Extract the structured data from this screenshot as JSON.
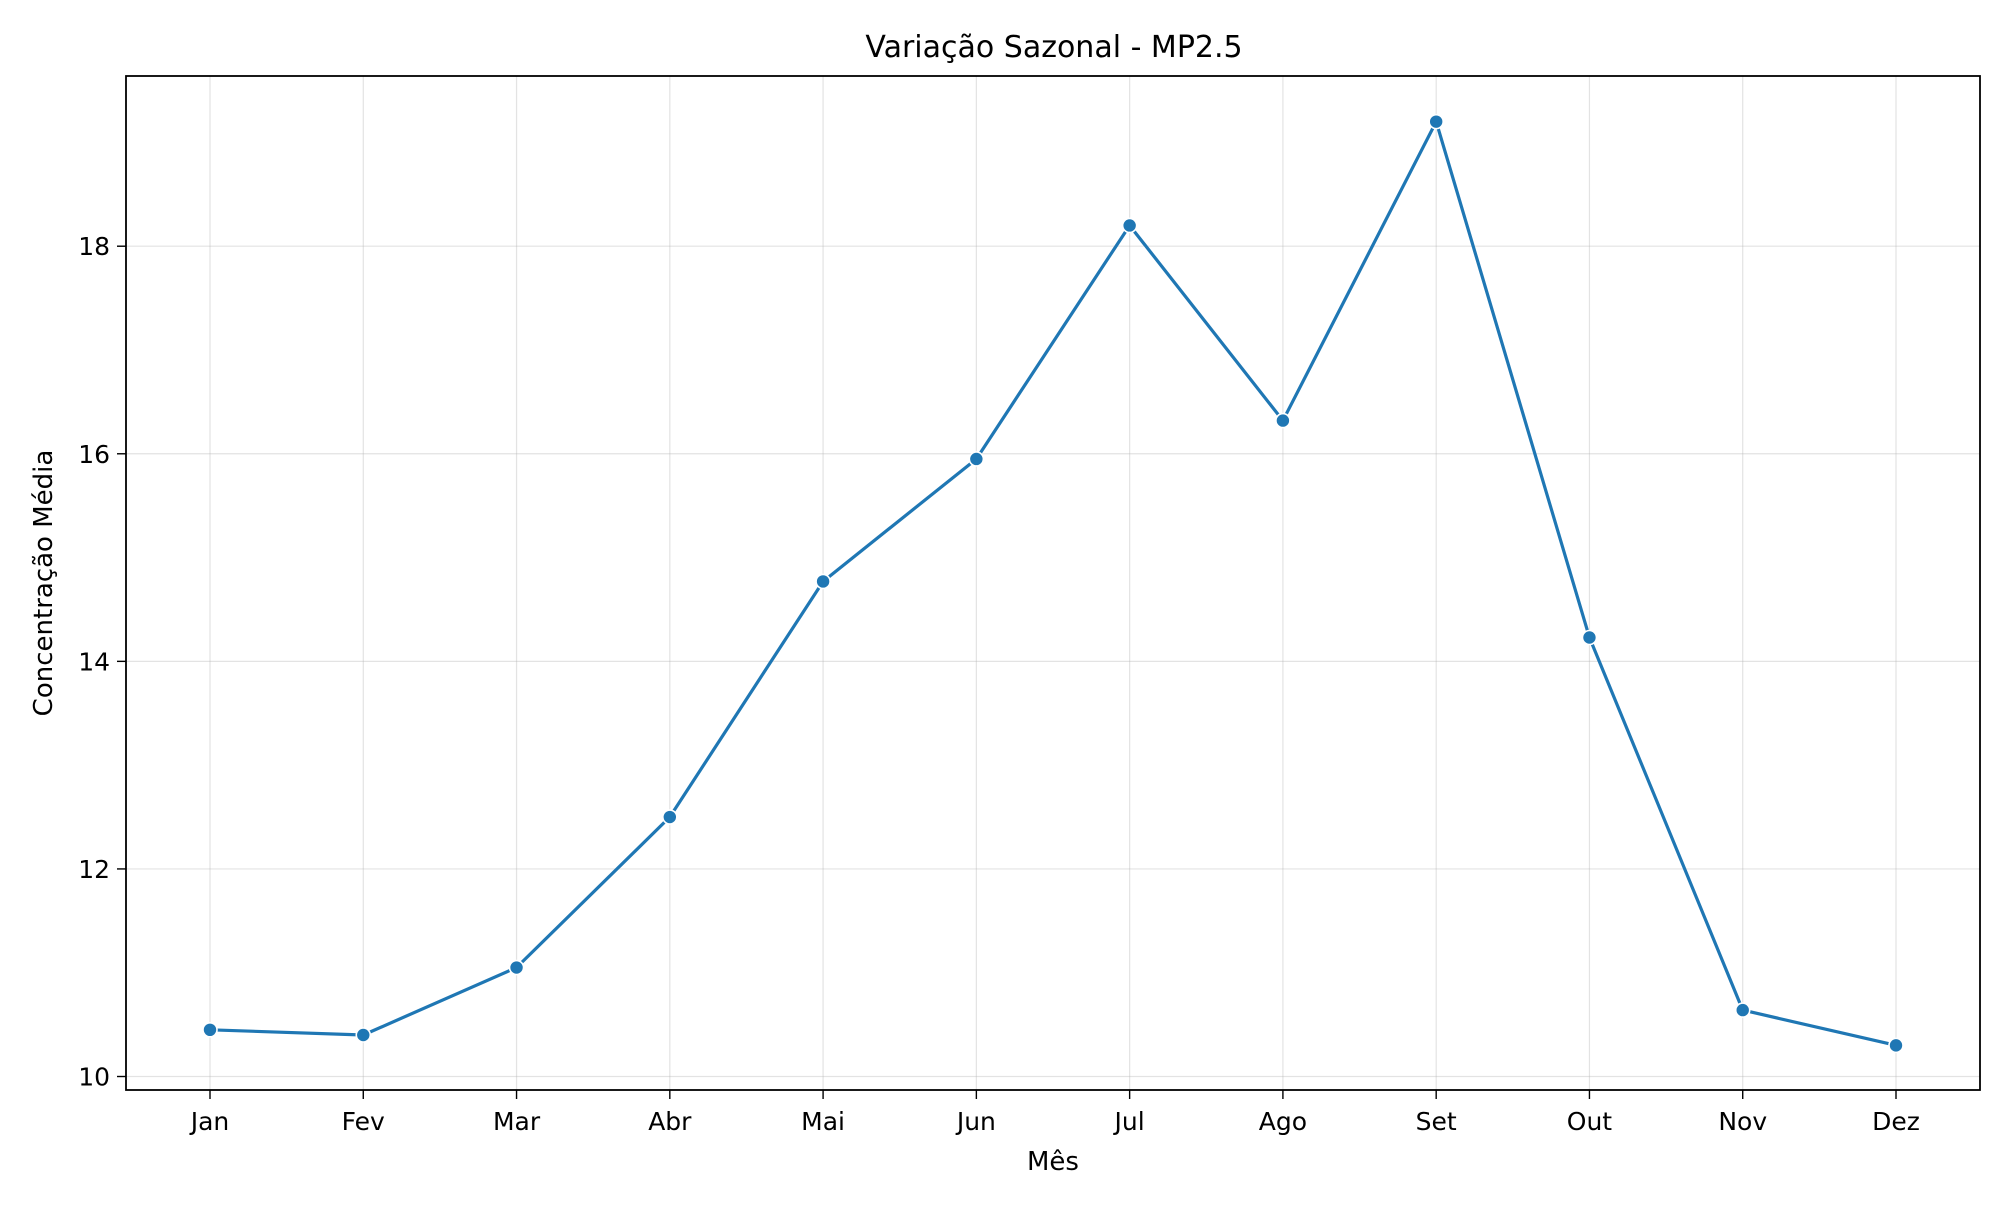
{
  "chart_data": {
    "type": "line",
    "title": "Variação Sazonal - MP2.5",
    "xlabel": "Mês",
    "ylabel": "Concentração Média",
    "categories": [
      "Jan",
      "Fev",
      "Mar",
      "Abr",
      "Mai",
      "Jun",
      "Jul",
      "Ago",
      "Set",
      "Out",
      "Nov",
      "Dez"
    ],
    "series": [
      {
        "values": [
          10.45,
          10.4,
          11.05,
          12.5,
          14.77,
          15.95,
          18.2,
          16.32,
          19.2,
          14.23,
          10.64,
          10.3
        ]
      }
    ],
    "ylim": [
      9.87,
      19.64
    ],
    "yticks": [
      10,
      12,
      14,
      16,
      18
    ],
    "grid": true,
    "line_color": "#1f77b4",
    "marker": "circle"
  }
}
